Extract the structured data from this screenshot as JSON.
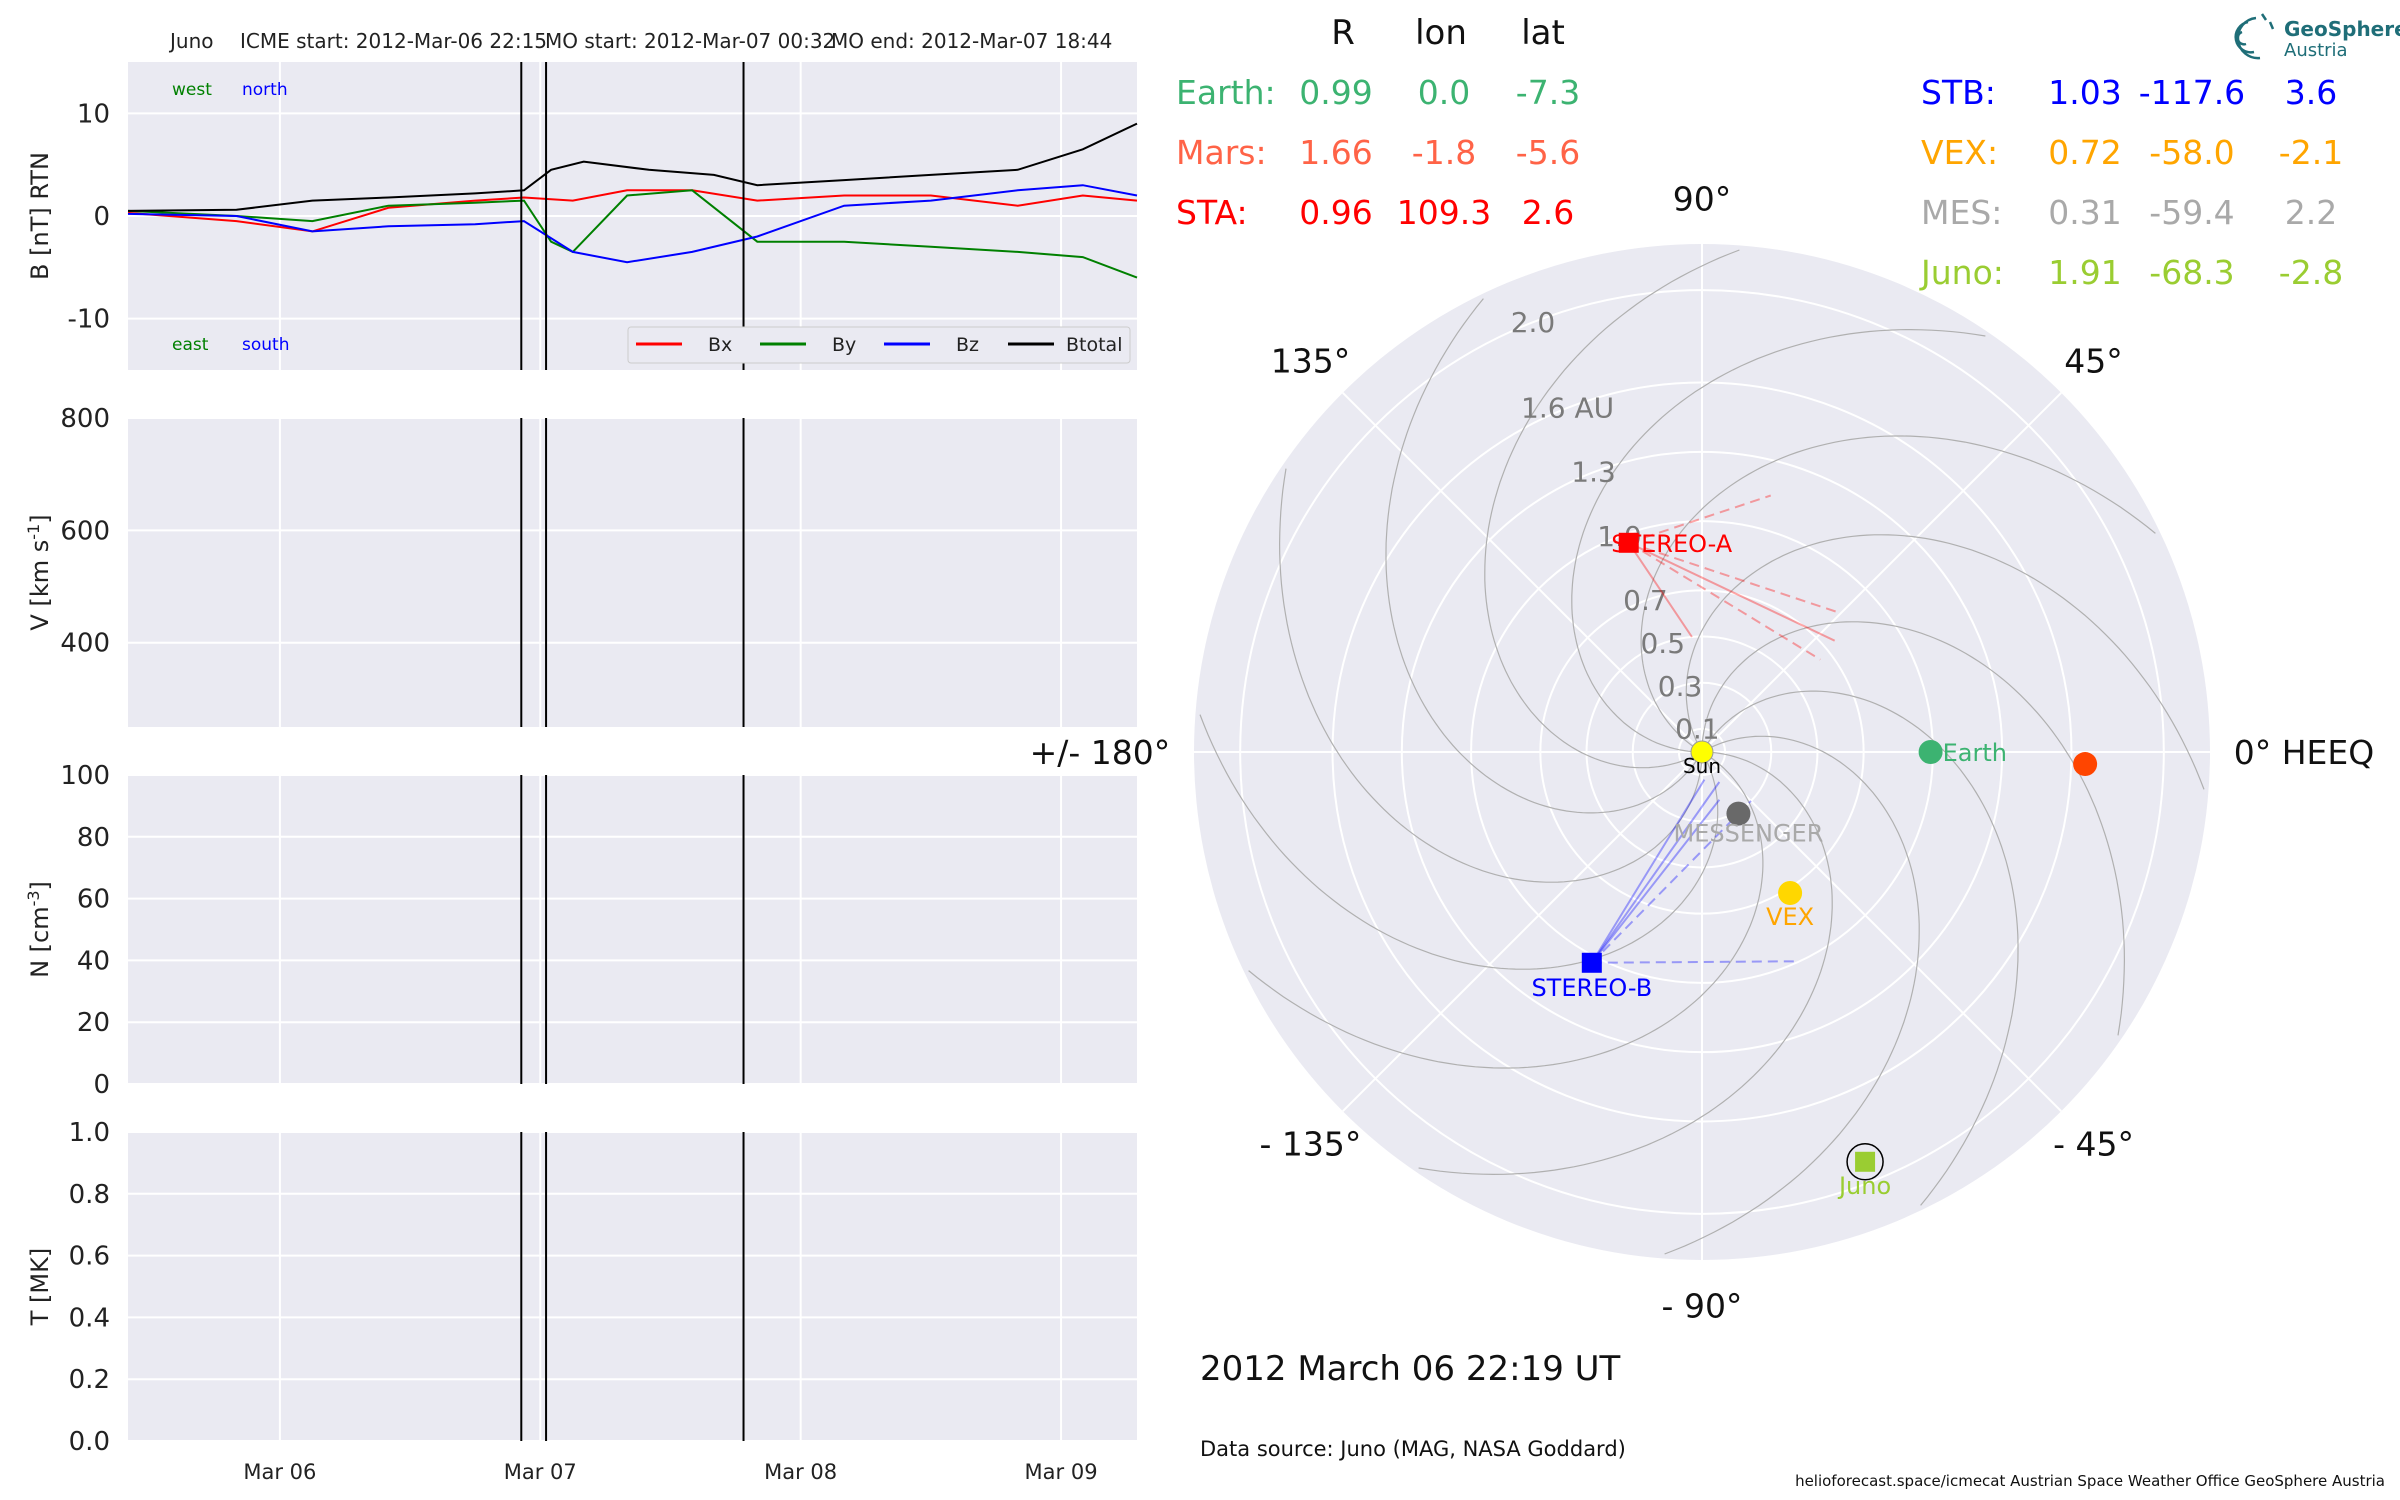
{
  "header": {
    "spacecraft": "Juno",
    "icme_start": "ICME start: 2012-Mar-06 22:15",
    "mo_start": "MO start: 2012-Mar-07 00:32",
    "mo_end": "MO end: 2012-Mar-07 18:44"
  },
  "logo": {
    "line1": "GeoSphere",
    "line2": "Austria"
  },
  "time_label": "2012 March 06  22:19 UT",
  "data_source": "Data source: Juno (MAG, NASA Goddard)",
  "credits": "helioforecast.space/icmecat   Austrian Space Weather Office   GeoSphere Austria",
  "colors": {
    "bx": "#ff0000",
    "by": "#008000",
    "bz": "#0000ff",
    "btot": "#000000",
    "panel_bg": "#eaeaf2",
    "earth": "#3cb371",
    "mars": "#ff6347",
    "sta": "#ff0000",
    "stb": "#0000ff",
    "vex": "#ffa500",
    "mes": "#a9a9a9",
    "juno": "#9acd32"
  },
  "position_table": {
    "headers": [
      "R",
      "lon",
      "lat"
    ],
    "left": [
      {
        "name": "Earth:",
        "r": "0.99",
        "lon": "0.0",
        "lat": "-7.3",
        "color": "#3cb371"
      },
      {
        "name": "Mars:",
        "r": "1.66",
        "lon": "-1.8",
        "lat": "-5.6",
        "color": "#ff6347"
      },
      {
        "name": "STA:",
        "r": "0.96",
        "lon": "109.3",
        "lat": "2.6",
        "color": "#ff0000"
      }
    ],
    "right": [
      {
        "name": "STB:",
        "r": "1.03",
        "lon": "-117.6",
        "lat": "3.6",
        "color": "#0000ff"
      },
      {
        "name": "VEX:",
        "r": "0.72",
        "lon": "-58.0",
        "lat": "-2.1",
        "color": "#ffa500"
      },
      {
        "name": "MES:",
        "r": "0.31",
        "lon": "-59.4",
        "lat": "2.2",
        "color": "#a9a9a9"
      },
      {
        "name": "Juno:",
        "r": "1.91",
        "lon": "-68.3",
        "lat": "-2.8",
        "color": "#9acd32"
      }
    ]
  },
  "chart_data": [
    {
      "type": "line",
      "ylabel": "B [nT] RTN",
      "ylim": [
        -15,
        15
      ],
      "yticks": [
        -10,
        0,
        10
      ],
      "xticks": [
        "Mar 06",
        "Mar 07",
        "Mar 08",
        "Mar 09"
      ],
      "xlim": [
        "2012-03-05 10:00",
        "2012-03-09 07:00"
      ],
      "labels_top": [
        "west",
        "north"
      ],
      "labels_bottom": [
        "east",
        "south"
      ],
      "legend": [
        "Bx",
        "By",
        "Bz",
        "Btotal"
      ],
      "legend_position": "lower-right",
      "event_lines": [
        "2012-03-06 22:15",
        "2012-03-07 00:32",
        "2012-03-07 18:44"
      ],
      "series": [
        {
          "name": "Bx",
          "x": [
            "2012-03-05 10:00",
            "2012-03-05 20:00",
            "2012-03-06 03:00",
            "2012-03-06 10:00",
            "2012-03-06 18:00",
            "2012-03-06 22:30",
            "2012-03-07 03:00",
            "2012-03-07 08:00",
            "2012-03-07 14:00",
            "2012-03-07 20:00",
            "2012-03-08 04:00",
            "2012-03-08 12:00",
            "2012-03-08 20:00",
            "2012-03-09 02:00",
            "2012-03-09 07:00"
          ],
          "values": [
            0.3,
            -0.5,
            -1.5,
            0.8,
            1.5,
            1.8,
            1.5,
            2.5,
            2.5,
            1.5,
            2.0,
            2.0,
            1.0,
            2.0,
            1.5
          ]
        },
        {
          "name": "By",
          "x": [
            "2012-03-05 10:00",
            "2012-03-05 20:00",
            "2012-03-06 03:00",
            "2012-03-06 10:00",
            "2012-03-06 18:00",
            "2012-03-06 22:30",
            "2012-03-07 01:00",
            "2012-03-07 03:00",
            "2012-03-07 08:00",
            "2012-03-07 14:00",
            "2012-03-07 20:00",
            "2012-03-08 04:00",
            "2012-03-08 12:00",
            "2012-03-08 20:00",
            "2012-03-09 02:00",
            "2012-03-09 07:00"
          ],
          "values": [
            0.5,
            0.0,
            -0.5,
            1.0,
            1.3,
            1.5,
            -2.5,
            -3.5,
            2.0,
            2.5,
            -2.5,
            -2.5,
            -3.0,
            -3.5,
            -4.0,
            -6.0
          ]
        },
        {
          "name": "Bz",
          "x": [
            "2012-03-05 10:00",
            "2012-03-05 20:00",
            "2012-03-06 03:00",
            "2012-03-06 10:00",
            "2012-03-06 18:00",
            "2012-03-06 22:30",
            "2012-03-07 03:00",
            "2012-03-07 08:00",
            "2012-03-07 14:00",
            "2012-03-07 20:00",
            "2012-03-08 04:00",
            "2012-03-08 12:00",
            "2012-03-08 20:00",
            "2012-03-09 02:00",
            "2012-03-09 07:00"
          ],
          "values": [
            0.2,
            0.0,
            -1.5,
            -1.0,
            -0.8,
            -0.5,
            -3.5,
            -4.5,
            -3.5,
            -2.0,
            1.0,
            1.5,
            2.5,
            3.0,
            2.0
          ]
        },
        {
          "name": "Btotal",
          "x": [
            "2012-03-05 10:00",
            "2012-03-05 20:00",
            "2012-03-06 03:00",
            "2012-03-06 10:00",
            "2012-03-06 18:00",
            "2012-03-06 22:30",
            "2012-03-07 01:00",
            "2012-03-07 04:00",
            "2012-03-07 10:00",
            "2012-03-07 16:00",
            "2012-03-07 20:00",
            "2012-03-08 04:00",
            "2012-03-08 12:00",
            "2012-03-08 20:00",
            "2012-03-09 02:00",
            "2012-03-09 07:00"
          ],
          "values": [
            0.5,
            0.6,
            1.5,
            1.8,
            2.2,
            2.5,
            4.5,
            5.3,
            4.5,
            4.0,
            3.0,
            3.5,
            4.0,
            4.5,
            6.5,
            9.0
          ]
        }
      ]
    },
    {
      "type": "line",
      "ylabel": "V [km s^-1]",
      "ylim": [
        250,
        800
      ],
      "yticks": [
        400,
        600,
        800
      ],
      "xticks": [
        "Mar 06",
        "Mar 07",
        "Mar 08",
        "Mar 09"
      ],
      "event_lines": [
        "2012-03-06 22:15",
        "2012-03-07 00:32",
        "2012-03-07 18:44"
      ],
      "series": []
    },
    {
      "type": "line",
      "ylabel": "N [cm^-3]",
      "ylim": [
        0,
        100
      ],
      "yticks": [
        0,
        20,
        40,
        60,
        80,
        100
      ],
      "xticks": [
        "Mar 06",
        "Mar 07",
        "Mar 08",
        "Mar 09"
      ],
      "event_lines": [
        "2012-03-06 22:15",
        "2012-03-07 00:32",
        "2012-03-07 18:44"
      ],
      "series": []
    },
    {
      "type": "line",
      "ylabel": "T [MK]",
      "ylim": [
        0,
        1
      ],
      "yticks": [
        "0.0",
        "0.2",
        "0.4",
        "0.6",
        "0.8",
        "1.0"
      ],
      "xticks": [
        "Mar 06",
        "Mar 07",
        "Mar 08",
        "Mar 09"
      ],
      "event_lines": [
        "2012-03-06 22:15",
        "2012-03-07 00:32",
        "2012-03-07 18:44"
      ],
      "series": []
    },
    {
      "type": "scatter",
      "projection": "polar",
      "r_ticks": [
        "0.1",
        "0.3",
        "0.5",
        "0.7",
        "1.0",
        "1.3",
        "1.6 AU",
        "2.0"
      ],
      "r_tick_values": [
        0.1,
        0.3,
        0.5,
        0.7,
        1.0,
        1.3,
        1.6,
        2.0
      ],
      "r_max": 2.2,
      "angle_labels": [
        {
          "deg": 0,
          "label": "0° HEEQ"
        },
        {
          "deg": 45,
          "label": "45°"
        },
        {
          "deg": 90,
          "label": "90°"
        },
        {
          "deg": 135,
          "label": "135°"
        },
        {
          "deg": 180,
          "label": "+/- 180°"
        },
        {
          "deg": -135,
          "label": "- 135°"
        },
        {
          "deg": -90,
          "label": "- 90°"
        },
        {
          "deg": -45,
          "label": "- 45°"
        }
      ],
      "bodies": [
        {
          "name": "Sun",
          "r": 0,
          "lon": 0,
          "marker": "circle",
          "color": "#ffff00",
          "label": "Sun"
        },
        {
          "name": "Earth",
          "r": 0.99,
          "lon": 0.0,
          "marker": "circle",
          "color": "#3cb371",
          "label": "Earth"
        },
        {
          "name": "Mars",
          "r": 1.66,
          "lon": -1.8,
          "marker": "circle",
          "color": "#ff4500",
          "label": ""
        },
        {
          "name": "STEREO-A",
          "r": 0.96,
          "lon": 109.3,
          "marker": "square",
          "color": "#ff0000",
          "label": "STEREO-A"
        },
        {
          "name": "STEREO-B",
          "r": 1.03,
          "lon": -117.6,
          "marker": "square",
          "color": "#0000ff",
          "label": "STEREO-B"
        },
        {
          "name": "VEX",
          "r": 0.72,
          "lon": -58.0,
          "marker": "circle",
          "color": "#ffd700",
          "label": "VEX"
        },
        {
          "name": "MESSENGER",
          "r": 0.31,
          "lon": -59.4,
          "marker": "circle",
          "color": "#696969",
          "label": "MESSENGER"
        },
        {
          "name": "Juno",
          "r": 1.91,
          "lon": -68.3,
          "marker": "square",
          "color": "#9acd32",
          "label": "Juno"
        }
      ],
      "fov_lines": [
        {
          "from": "STEREO-A",
          "r": 0.85,
          "lon": 45,
          "color": "#ff0000",
          "dash": true
        },
        {
          "from": "STEREO-A",
          "r": 0.75,
          "lon": 40,
          "color": "#ff0000",
          "dash": false
        },
        {
          "from": "STEREO-A",
          "r": 0.65,
          "lon": 38,
          "color": "#ff0000",
          "dash": true
        },
        {
          "from": "STEREO-A",
          "r": 1.15,
          "lon": 75,
          "color": "#ff0000",
          "dash": true
        },
        {
          "from": "STEREO-A",
          "r": 0.5,
          "lon": 95,
          "color": "#ff0000",
          "dash": false
        },
        {
          "from": "STEREO-B",
          "r": 0.3,
          "lon": -45,
          "color": "#0000ff",
          "dash": true
        },
        {
          "from": "STEREO-B",
          "r": 0.22,
          "lon": -70,
          "color": "#0000ff",
          "dash": false
        },
        {
          "from": "STEREO-B",
          "r": 0.15,
          "lon": -60,
          "color": "#0000ff",
          "dash": false
        },
        {
          "from": "STEREO-B",
          "r": 0.12,
          "lon": -85,
          "color": "#0000ff",
          "dash": false
        },
        {
          "from": "STEREO-B",
          "r": 1.0,
          "lon": -65,
          "color": "#0000ff",
          "dash": true
        }
      ]
    }
  ]
}
